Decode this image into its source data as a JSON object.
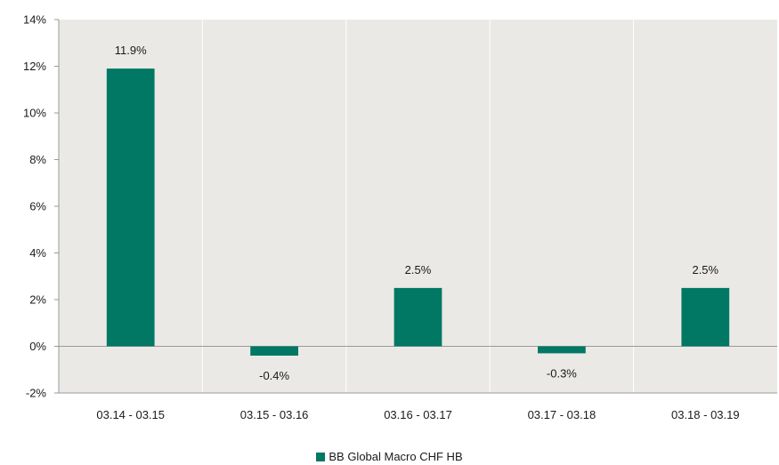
{
  "chart_data": {
    "type": "bar",
    "categories": [
      "03.14 - 03.15",
      "03.15 - 03.16",
      "03.16 - 03.17",
      "03.17 - 03.18",
      "03.18 - 03.19"
    ],
    "series": [
      {
        "name": "BB Global Macro CHF HB",
        "values": [
          11.9,
          -0.4,
          2.5,
          -0.3,
          2.5
        ],
        "labels": [
          "11.9%",
          "-0.4%",
          "2.5%",
          "-0.3%",
          "2.5%"
        ],
        "color": "#007864"
      }
    ],
    "ylim": [
      -2,
      14
    ],
    "yticks": [
      -2,
      0,
      2,
      4,
      6,
      8,
      10,
      12,
      14
    ],
    "ytick_labels": [
      "-2%",
      "0%",
      "2%",
      "4%",
      "6%",
      "8%",
      "10%",
      "12%",
      "14%"
    ],
    "grid": "vertical",
    "legend_position": "bottom-center",
    "plot_background": "#ebe9e6",
    "gridline_color": "#ffffff",
    "axis_color": "#9a9a9a"
  }
}
